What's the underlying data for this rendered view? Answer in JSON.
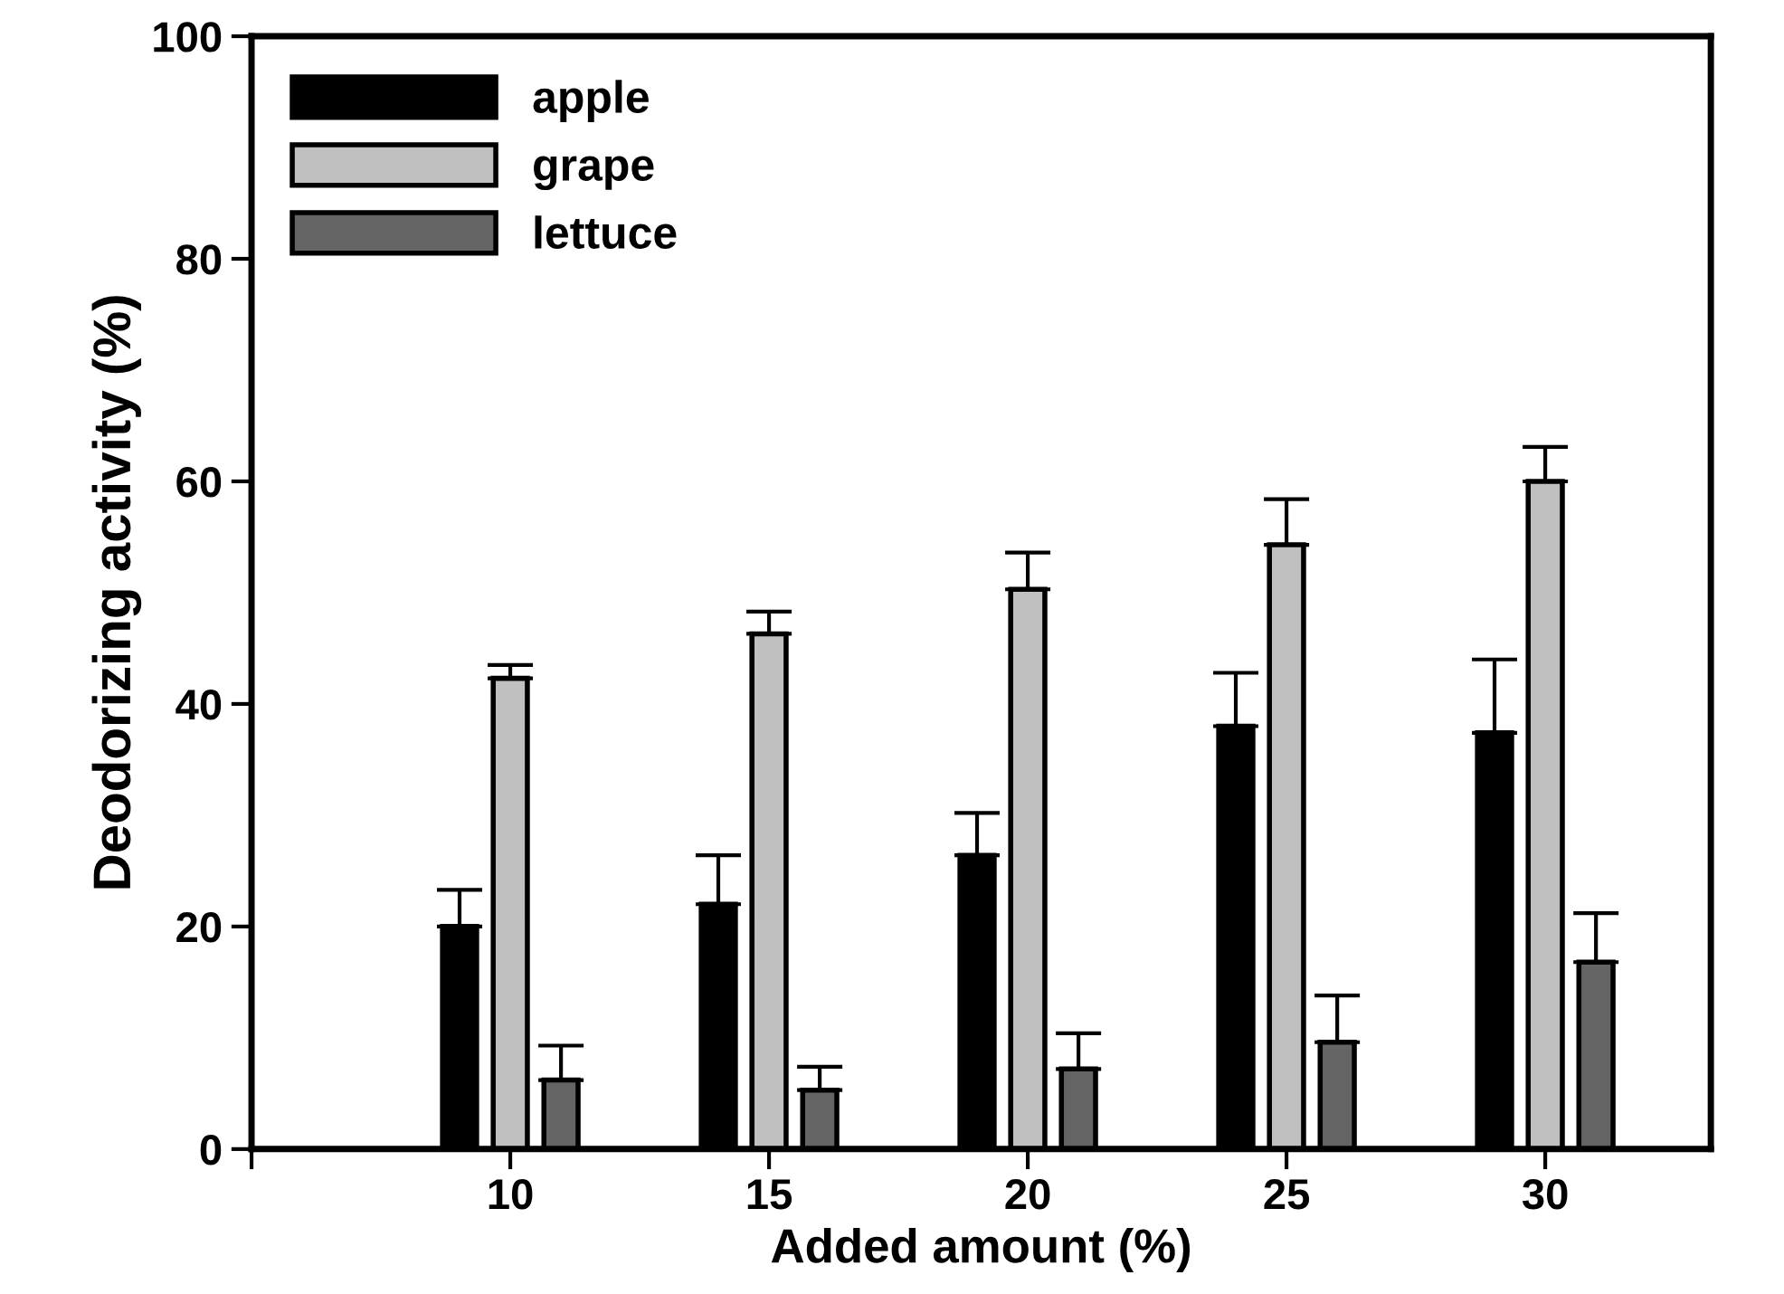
{
  "chart_data": {
    "type": "bar",
    "xlabel": "Added amount (%)",
    "ylabel": "Deodorizing activity (%)",
    "x": [
      10,
      15,
      20,
      25,
      30
    ],
    "series": [
      {
        "name": "apple",
        "color": "#000000",
        "values": [
          20,
          22,
          26.4,
          38,
          37.4
        ],
        "errors": [
          [
            20,
            23.3
          ],
          [
            22,
            26.4
          ],
          [
            26.4,
            30.2
          ],
          [
            38,
            42.8
          ],
          [
            37.4,
            44
          ]
        ]
      },
      {
        "name": "grape",
        "color": "#c0c0c0",
        "values": [
          42.3,
          46.3,
          50.3,
          54.3,
          60
        ],
        "errors": [
          [
            42.3,
            43.5
          ],
          [
            46.3,
            48.3
          ],
          [
            50.3,
            53.6
          ],
          [
            54.3,
            58.4
          ],
          [
            60,
            63.1
          ]
        ]
      },
      {
        "name": "lettuce",
        "color": "#646464",
        "values": [
          6.2,
          5.3,
          7.2,
          9.6,
          16.8
        ],
        "errors": [
          [
            6.2,
            9.3
          ],
          [
            5.3,
            7.4
          ],
          [
            7.2,
            10.4
          ],
          [
            9.6,
            13.8
          ],
          [
            16.8,
            21.2
          ]
        ]
      }
    ],
    "xlim": [
      5,
      33.2
    ],
    "xticks": [
      {
        "value": 5,
        "label": null
      },
      10,
      15,
      20,
      25,
      30
    ],
    "ylim": [
      0,
      100
    ],
    "yticks": [
      0,
      20,
      40,
      60,
      80,
      100
    ],
    "legend": "top left",
    "grid": false
  }
}
